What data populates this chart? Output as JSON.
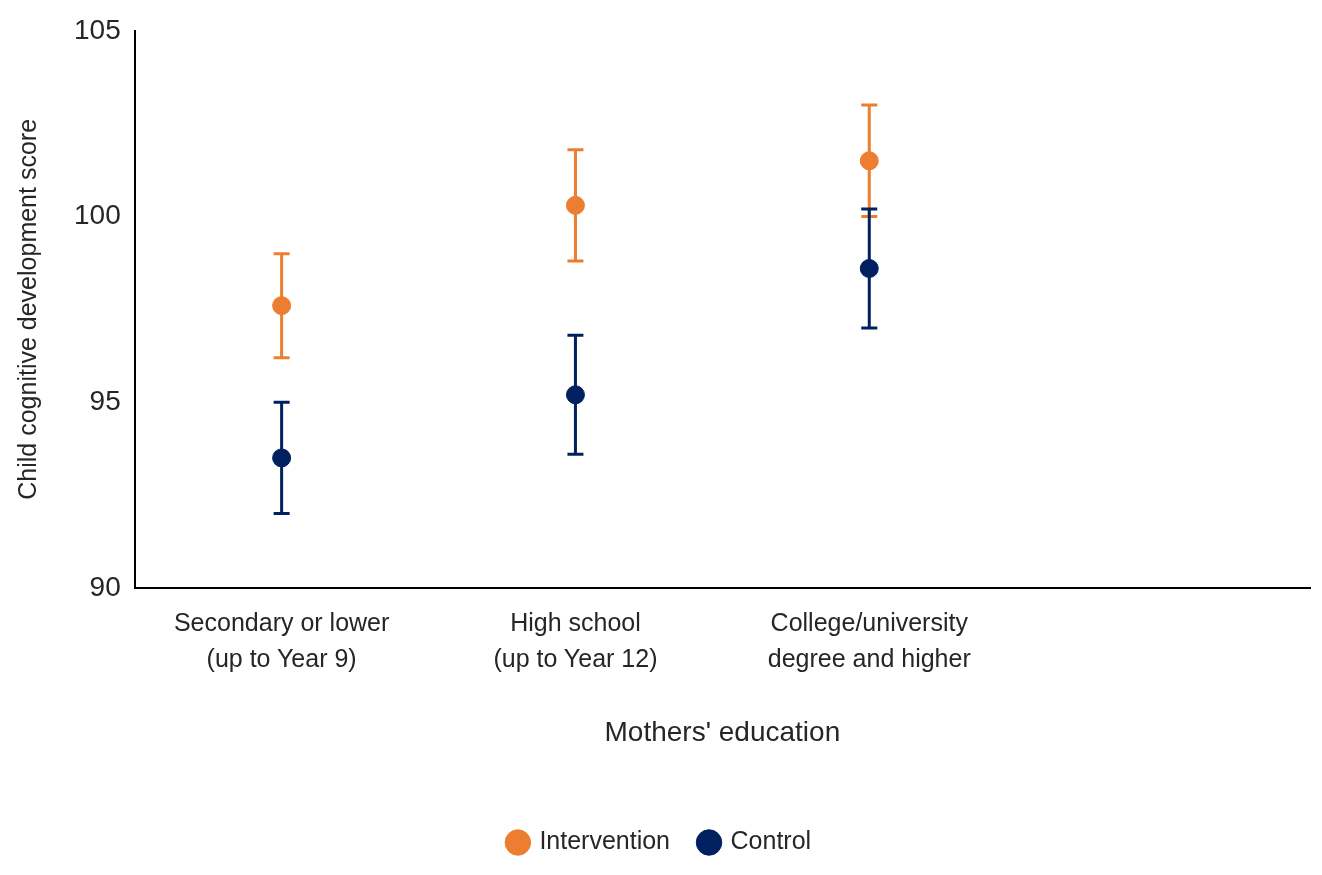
{
  "chart_data": {
    "type": "scatter",
    "xlabel": "Mothers' education",
    "ylabel": "Child cognitive development score",
    "categories": [
      "Secondary or lower\n(up to Year 9)",
      "High school\n(up to Year 12)",
      "College/university\ndegree and higher",
      null
    ],
    "series": [
      {
        "name": "Intervention",
        "color": "#ed7d31",
        "values": [
          97.6,
          100.3,
          101.5,
          null
        ],
        "errors": [
          1.4,
          1.5,
          1.5,
          null
        ]
      },
      {
        "name": "Control",
        "color": "#002060",
        "values": [
          93.5,
          95.2,
          98.6,
          null
        ],
        "errors": [
          1.5,
          1.6,
          1.6,
          null
        ]
      }
    ],
    "ylim": [
      90,
      105
    ],
    "yticks": [
      90,
      95,
      100,
      105
    ],
    "grid": false,
    "legend": "bottom",
    "marker": "circle"
  }
}
